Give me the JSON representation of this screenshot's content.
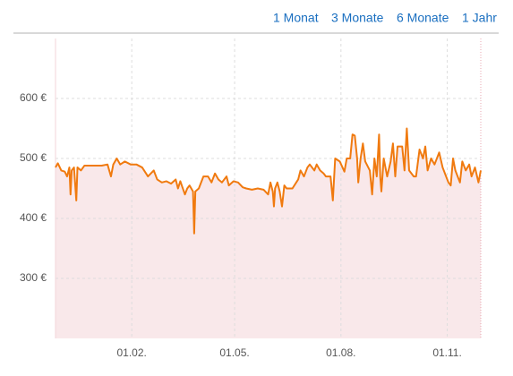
{
  "nav": {
    "links": [
      "1 Monat",
      "3 Monate",
      "6 Monate",
      "1 Jahr"
    ]
  },
  "chart_data": {
    "type": "line",
    "x": [
      0,
      2,
      5,
      8,
      10,
      12,
      13,
      14,
      16,
      18,
      19,
      22,
      25,
      30,
      40,
      45,
      48,
      50,
      53,
      56,
      60,
      65,
      70,
      75,
      80,
      85,
      88,
      92,
      96,
      100,
      104,
      106,
      108,
      112,
      114,
      116,
      119,
      120,
      121,
      124,
      128,
      132,
      135,
      138,
      141,
      144,
      148,
      150,
      154,
      158,
      162,
      165,
      170,
      175,
      180,
      184,
      186,
      188,
      189,
      190,
      192,
      194,
      196,
      198,
      200,
      205,
      210,
      212,
      215,
      218,
      220,
      224,
      226,
      229,
      232,
      234,
      238,
      240,
      242,
      246,
      250,
      252,
      255,
      257,
      259,
      261,
      262,
      264,
      266,
      268,
      272,
      274,
      276,
      278,
      280,
      281,
      282,
      284,
      287,
      290,
      292,
      294,
      296,
      298,
      300,
      302,
      304,
      306,
      310,
      312,
      315,
      318,
      320,
      322,
      325,
      328,
      332,
      335,
      338,
      340,
      342,
      344,
      346,
      348,
      350,
      352,
      355,
      358,
      360,
      363,
      366,
      368
    ],
    "series": [
      {
        "color": "#f07a0f",
        "values": [
          485,
          492,
          480,
          478,
          470,
          485,
          440,
          480,
          485,
          430,
          485,
          480,
          488,
          488,
          488,
          490,
          470,
          490,
          500,
          490,
          495,
          490,
          490,
          485,
          470,
          480,
          465,
          460,
          462,
          458,
          465,
          450,
          462,
          440,
          450,
          455,
          445,
          375,
          445,
          450,
          470,
          470,
          460,
          475,
          465,
          460,
          470,
          455,
          462,
          460,
          452,
          450,
          448,
          450,
          448,
          440,
          460,
          445,
          420,
          450,
          460,
          445,
          420,
          455,
          450,
          450,
          465,
          480,
          470,
          485,
          490,
          480,
          490,
          480,
          475,
          470,
          470,
          430,
          500,
          495,
          478,
          500,
          500,
          540,
          538,
          500,
          460,
          500,
          525,
          495,
          480,
          440,
          500,
          470,
          540,
          470,
          445,
          500,
          470,
          495,
          525,
          470,
          520,
          520,
          520,
          480,
          550,
          480,
          470,
          470,
          515,
          500,
          520,
          480,
          500,
          490,
          510,
          485,
          470,
          460,
          455,
          500,
          480,
          470,
          460,
          495,
          480,
          490,
          470,
          485,
          460,
          480
        ]
      }
    ],
    "area_color": "#f9e8ea",
    "xlim": [
      0,
      368
    ],
    "ylim": [
      200,
      700
    ],
    "xticks": [
      {
        "value": 66,
        "label": "01.02."
      },
      {
        "value": 155,
        "label": "01.05."
      },
      {
        "value": 247,
        "label": "01.08."
      },
      {
        "value": 339,
        "label": "01.11."
      }
    ],
    "yticks": [
      {
        "value": 300,
        "label": "300 €"
      },
      {
        "value": 400,
        "label": "400 €"
      },
      {
        "value": 500,
        "label": "500 €"
      },
      {
        "value": 600,
        "label": "600 €"
      }
    ],
    "grid": true
  }
}
